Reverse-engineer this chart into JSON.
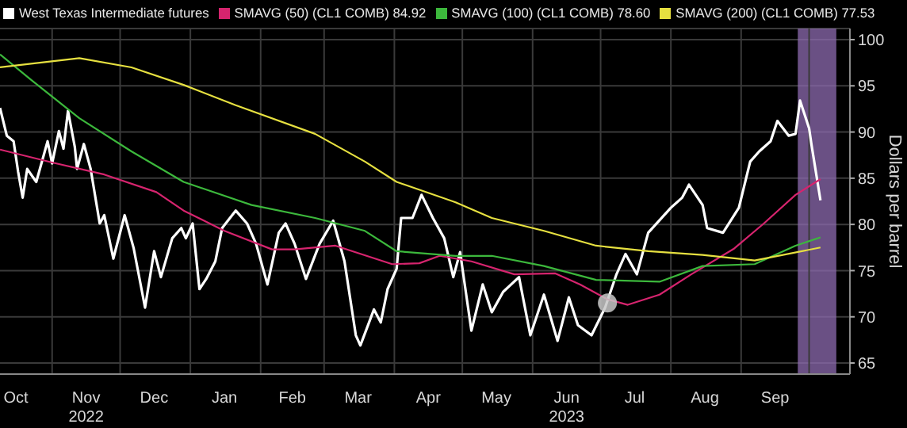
{
  "chart_data": {
    "type": "line",
    "ylabel": "Dollars per barrel",
    "xlim": [
      "2022-10-09",
      "2023-10-19"
    ],
    "ylim": [
      63.8,
      101.2
    ],
    "yticks": [
      65,
      70,
      75,
      80,
      85,
      90,
      95,
      100
    ],
    "xticks": [
      {
        "value": "2022-10-16",
        "label": "Oct"
      },
      {
        "value": "2022-11-01",
        "label": null
      },
      {
        "value": "2022-11-16",
        "label": "Nov\n2022"
      },
      {
        "value": "2022-12-01",
        "label": null
      },
      {
        "value": "2022-12-16",
        "label": "Dec"
      },
      {
        "value": "2023-01-01",
        "label": null
      },
      {
        "value": "2023-01-16",
        "label": "Jan"
      },
      {
        "value": "2023-02-01",
        "label": null
      },
      {
        "value": "2023-02-15",
        "label": "Feb"
      },
      {
        "value": "2023-03-01",
        "label": null
      },
      {
        "value": "2023-03-16",
        "label": "Mar"
      },
      {
        "value": "2023-04-01",
        "label": null
      },
      {
        "value": "2023-04-16",
        "label": "Apr"
      },
      {
        "value": "2023-05-01",
        "label": null
      },
      {
        "value": "2023-05-16",
        "label": "May"
      },
      {
        "value": "2023-06-01",
        "label": null
      },
      {
        "value": "2023-06-16",
        "label": "Jun\n2023"
      },
      {
        "value": "2023-07-01",
        "label": null
      },
      {
        "value": "2023-07-16",
        "label": "Jul"
      },
      {
        "value": "2023-08-01",
        "label": null
      },
      {
        "value": "2023-08-16",
        "label": "Aug"
      },
      {
        "value": "2023-09-01",
        "label": null
      },
      {
        "value": "2023-09-16",
        "label": "Sep"
      },
      {
        "value": "2023-10-01",
        "label": null
      }
    ],
    "grid": true,
    "legend": "top left",
    "line_style": "solid",
    "marker": "none",
    "bands": [
      {
        "axis": "x",
        "from": "2023-09-26",
        "to": "2023-10-13",
        "color": "#8e6bb0"
      }
    ],
    "series": [
      {
        "name": "West Texas Intermediate futures",
        "color": "#ffffff",
        "x": [
          "2022-10-09",
          "2022-10-12",
          "2022-10-15",
          "2022-10-17",
          "2022-10-19",
          "2022-10-21",
          "2022-10-25",
          "2022-10-30",
          "2022-11-01",
          "2022-11-04",
          "2022-11-06",
          "2022-11-08",
          "2022-11-11",
          "2022-11-12",
          "2022-11-15",
          "2022-11-18",
          "2022-11-22",
          "2022-11-24",
          "2022-11-28",
          "2022-12-03",
          "2022-12-07",
          "2022-12-12",
          "2022-12-16",
          "2022-12-19",
          "2022-12-24",
          "2022-12-28",
          "2022-12-30",
          "2023-01-02",
          "2023-01-05",
          "2023-01-08",
          "2023-01-12",
          "2023-01-15",
          "2023-01-21",
          "2023-01-26",
          "2023-01-30",
          "2023-02-04",
          "2023-02-09",
          "2023-02-12",
          "2023-02-16",
          "2023-02-21",
          "2023-02-27",
          "2023-03-05",
          "2023-03-10",
          "2023-03-15",
          "2023-03-17",
          "2023-03-23",
          "2023-03-26",
          "2023-03-29",
          "2023-04-02",
          "2023-04-04",
          "2023-04-09",
          "2023-04-13",
          "2023-04-18",
          "2023-04-23",
          "2023-04-27",
          "2023-04-30",
          "2023-05-05",
          "2023-05-10",
          "2023-05-14",
          "2023-05-19",
          "2023-05-26",
          "2023-05-31",
          "2023-06-06",
          "2023-06-12",
          "2023-06-17",
          "2023-06-21",
          "2023-06-27",
          "2023-07-03",
          "2023-07-08",
          "2023-07-12",
          "2023-07-17",
          "2023-07-22",
          "2023-08-01",
          "2023-08-06",
          "2023-08-09",
          "2023-08-15",
          "2023-08-17",
          "2023-08-24",
          "2023-08-31",
          "2023-09-05",
          "2023-09-09",
          "2023-09-14",
          "2023-09-17",
          "2023-09-22",
          "2023-09-25",
          "2023-09-27",
          "2023-10-01",
          "2023-10-02",
          "2023-10-06"
        ],
        "values": [
          92.6,
          89.6,
          89.0,
          85.7,
          82.9,
          86.0,
          84.6,
          89.0,
          86.6,
          90.1,
          88.2,
          92.3,
          88.4,
          86.0,
          88.7,
          86.0,
          80.1,
          81.0,
          76.3,
          81.0,
          77.4,
          71.0,
          77.1,
          74.3,
          78.5,
          79.6,
          78.5,
          80.1,
          73.0,
          74.1,
          76.0,
          79.6,
          81.5,
          80.1,
          77.9,
          73.5,
          79.1,
          80.1,
          77.9,
          74.1,
          77.9,
          80.4,
          76.0,
          68.0,
          66.9,
          70.8,
          69.4,
          73.0,
          75.2,
          80.7,
          80.7,
          83.2,
          80.7,
          78.5,
          74.3,
          77.0,
          68.5,
          73.5,
          70.5,
          72.7,
          74.3,
          68.0,
          72.4,
          67.4,
          72.1,
          69.1,
          68.0,
          71.0,
          74.6,
          76.8,
          74.6,
          79.1,
          81.8,
          82.9,
          84.3,
          82.1,
          79.6,
          79.1,
          81.8,
          86.8,
          87.9,
          89.0,
          91.2,
          89.6,
          89.8,
          93.4,
          90.4,
          88.7,
          82.6
        ]
      },
      {
        "name": "SMAVG (50) (CL1 COMB) 84.92",
        "color": "#d6246e",
        "x": [
          "2022-10-09",
          "2022-11-01",
          "2022-11-24",
          "2022-12-17",
          "2022-12-29",
          "2023-01-16",
          "2023-02-06",
          "2023-02-16",
          "2023-03-06",
          "2023-03-31",
          "2023-04-12",
          "2023-04-21",
          "2023-05-05",
          "2023-05-24",
          "2023-06-11",
          "2023-06-22",
          "2023-07-04",
          "2023-07-13",
          "2023-07-27",
          "2023-08-10",
          "2023-08-29",
          "2023-09-11",
          "2023-09-25",
          "2023-10-06"
        ],
        "values": [
          88.1,
          86.7,
          85.4,
          83.5,
          81.5,
          79.3,
          77.3,
          77.3,
          77.7,
          75.7,
          75.8,
          76.6,
          76.0,
          74.6,
          74.7,
          73.5,
          71.9,
          71.3,
          72.4,
          74.6,
          77.4,
          80.1,
          83.2,
          84.9
        ]
      },
      {
        "name": "SMAVG (100) (CL1 COMB) 78.60",
        "color": "#3cb83c",
        "x": [
          "2022-10-09",
          "2022-10-23",
          "2022-11-13",
          "2022-12-06",
          "2022-12-29",
          "2023-01-28",
          "2023-02-25",
          "2023-03-19",
          "2023-04-02",
          "2023-04-28",
          "2023-05-14",
          "2023-06-06",
          "2023-06-29",
          "2023-07-27",
          "2023-08-15",
          "2023-09-07",
          "2023-09-25",
          "2023-10-06"
        ],
        "values": [
          98.4,
          95.6,
          91.5,
          87.9,
          84.6,
          82.1,
          80.7,
          79.3,
          77.1,
          76.6,
          76.6,
          75.5,
          74.0,
          73.8,
          75.5,
          75.7,
          77.7,
          78.6
        ]
      },
      {
        "name": "SMAVG (200) (CL1 COMB) 77.53",
        "color": "#e6e040",
        "x": [
          "2022-10-09",
          "2022-11-13",
          "2022-12-06",
          "2022-12-29",
          "2023-01-21",
          "2023-02-25",
          "2023-03-19",
          "2023-04-02",
          "2023-04-28",
          "2023-05-14",
          "2023-06-06",
          "2023-06-29",
          "2023-07-22",
          "2023-08-15",
          "2023-09-07",
          "2023-10-06"
        ],
        "values": [
          97.0,
          98.0,
          97.0,
          95.1,
          92.9,
          89.8,
          86.8,
          84.6,
          82.4,
          80.7,
          79.3,
          77.7,
          77.1,
          76.7,
          76.1,
          77.5
        ]
      },
      {
        "type": "scatter",
        "color": "#c8c8c8",
        "marker": "circle",
        "x": [
          "2023-07-04"
        ],
        "values": [
          71.5
        ]
      }
    ]
  }
}
